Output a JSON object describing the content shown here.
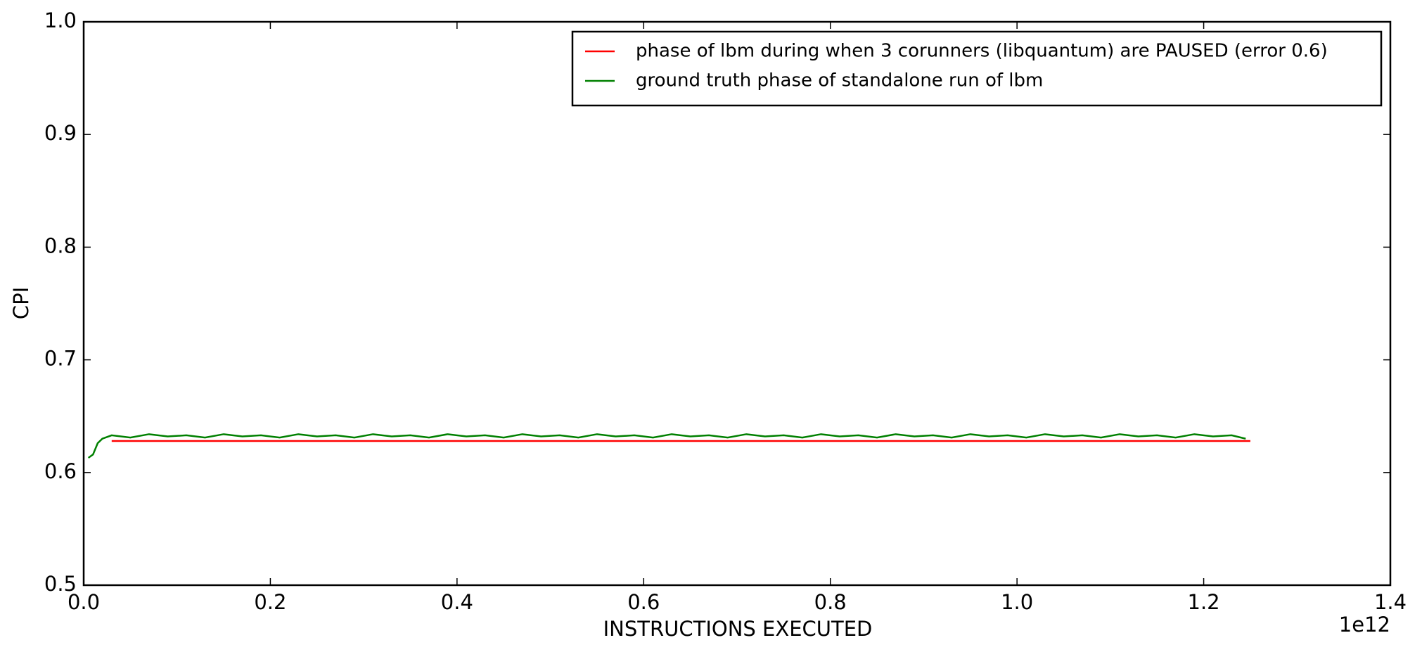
{
  "chart_data": {
    "type": "line",
    "xlabel": "INSTRUCTIONS EXECUTED",
    "ylabel": "CPI",
    "x_offset_label": "1e12",
    "xlim": [
      0,
      1.4
    ],
    "ylim": [
      0.5,
      1.0
    ],
    "xticks": [
      {
        "value": 0,
        "label": "0.0"
      },
      0.2,
      0.4,
      0.6,
      0.8,
      {
        "value": 1,
        "label": "1.0"
      },
      1.2,
      1.4
    ],
    "yticks": [
      0.5,
      0.6,
      0.7,
      0.8,
      0.9,
      {
        "value": 1,
        "label": "1.0"
      }
    ],
    "legend": "upper right",
    "series": [
      {
        "name": "phase of lbm during when 3 corunners (libquantum) are PAUSED (error 0.6)",
        "color": "#ff0000",
        "x": [
          0.03,
          1.25
        ],
        "values": [
          0.628,
          0.628
        ]
      },
      {
        "name": "ground truth phase of standalone run of lbm",
        "color": "#008000",
        "x": [
          0.005,
          0.01,
          0.015,
          0.02,
          0.03,
          0.05,
          0.07,
          0.09,
          0.11,
          0.13,
          0.15,
          0.17,
          0.19,
          0.21,
          0.23,
          0.25,
          0.27,
          0.29,
          0.31,
          0.33,
          0.35,
          0.37,
          0.39,
          0.41,
          0.43,
          0.45,
          0.47,
          0.49,
          0.51,
          0.53,
          0.55,
          0.57,
          0.59,
          0.61,
          0.63,
          0.65,
          0.67,
          0.69,
          0.71,
          0.73,
          0.75,
          0.77,
          0.79,
          0.81,
          0.83,
          0.85,
          0.87,
          0.89,
          0.91,
          0.93,
          0.95,
          0.97,
          0.99,
          1.01,
          1.03,
          1.05,
          1.07,
          1.09,
          1.11,
          1.13,
          1.15,
          1.17,
          1.19,
          1.21,
          1.23,
          1.245
        ],
        "values": [
          0.613,
          0.616,
          0.626,
          0.63,
          0.633,
          0.631,
          0.634,
          0.632,
          0.633,
          0.631,
          0.634,
          0.632,
          0.633,
          0.631,
          0.634,
          0.632,
          0.633,
          0.631,
          0.634,
          0.632,
          0.633,
          0.631,
          0.634,
          0.632,
          0.633,
          0.631,
          0.634,
          0.632,
          0.633,
          0.631,
          0.634,
          0.632,
          0.633,
          0.631,
          0.634,
          0.632,
          0.633,
          0.631,
          0.634,
          0.632,
          0.633,
          0.631,
          0.634,
          0.632,
          0.633,
          0.631,
          0.634,
          0.632,
          0.633,
          0.631,
          0.634,
          0.632,
          0.633,
          0.631,
          0.634,
          0.632,
          0.633,
          0.631,
          0.634,
          0.632,
          0.633,
          0.631,
          0.634,
          0.632,
          0.633,
          0.63
        ]
      }
    ]
  }
}
